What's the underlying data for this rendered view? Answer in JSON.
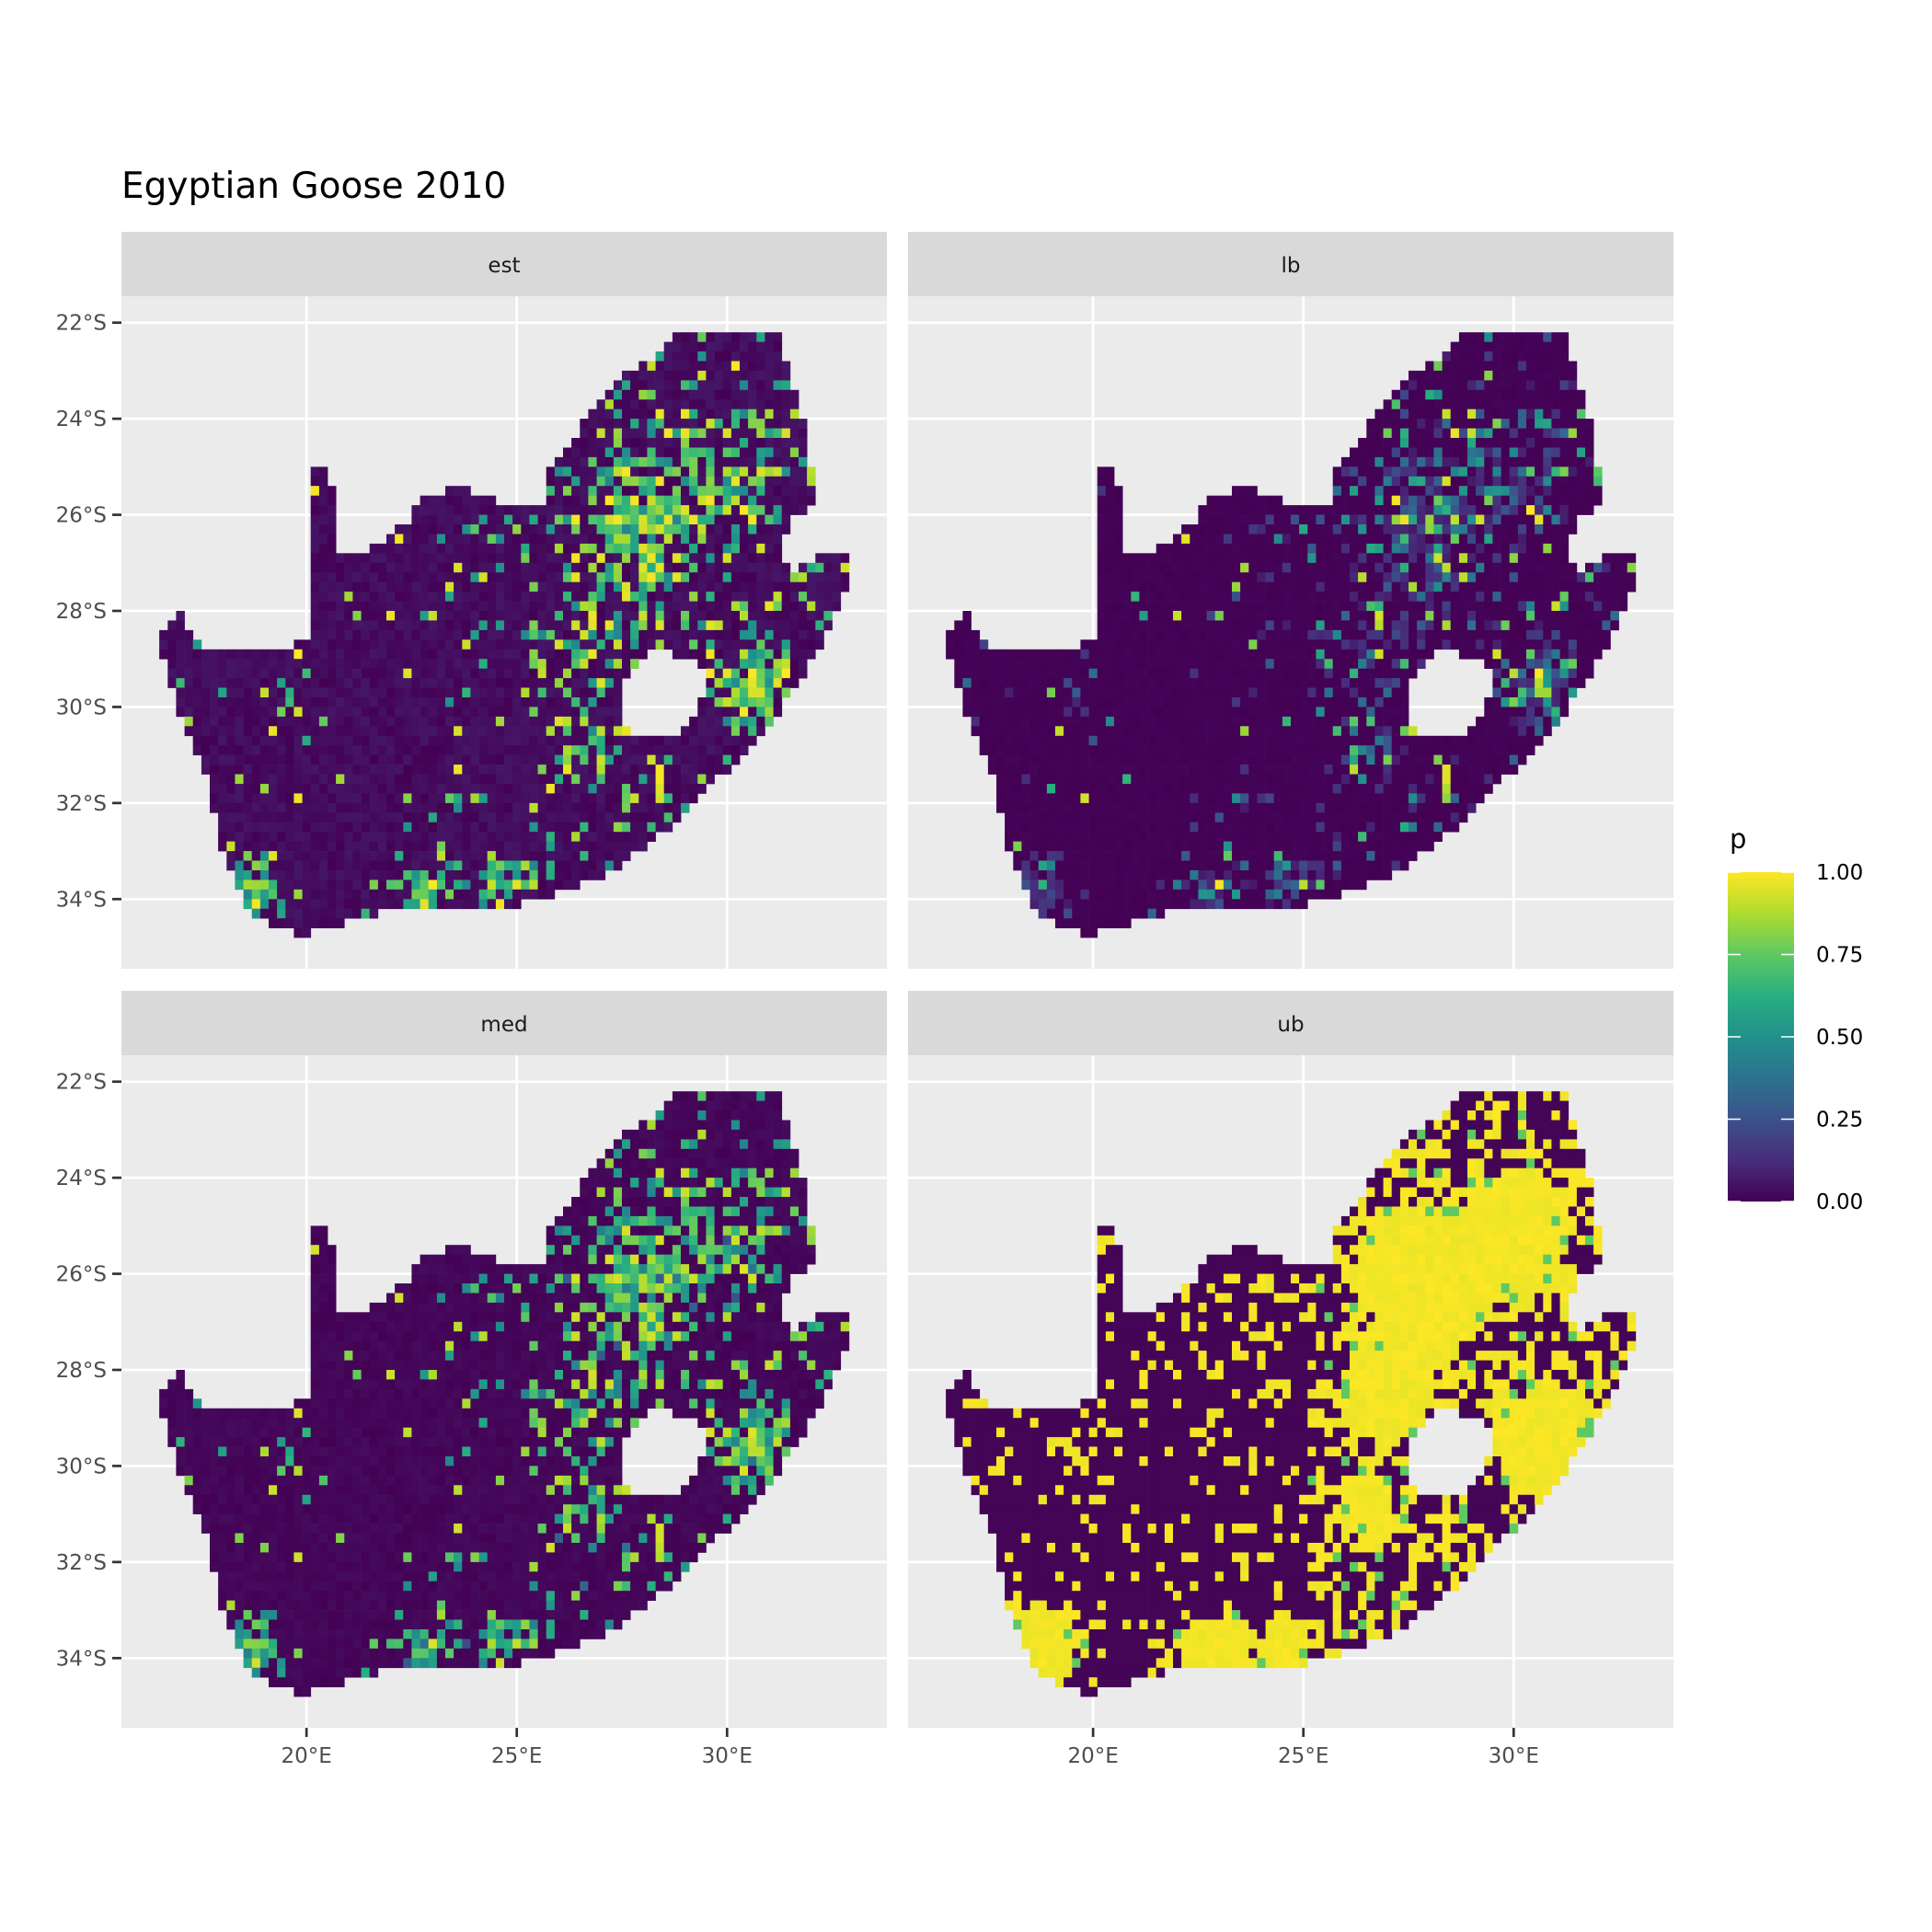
{
  "chart_data": {
    "type": "heatmap",
    "title": "Egyptian Goose 2010",
    "facets": [
      "est",
      "lb",
      "med",
      "ub"
    ],
    "x_ticks": [
      "20°E",
      "25°E",
      "30°E"
    ],
    "x_tick_values": [
      20,
      25,
      30
    ],
    "y_ticks": [
      "22°S",
      "24°S",
      "26°S",
      "28°S",
      "30°S",
      "32°S",
      "34°S"
    ],
    "y_tick_values": [
      -22,
      -24,
      -26,
      -28,
      -30,
      -32,
      -34
    ],
    "xlim": [
      15.6,
      33.8
    ],
    "ylim": [
      -35.45,
      -21.45
    ],
    "grid": true,
    "legend": {
      "title": "p",
      "position": "right",
      "colormap": "viridis",
      "range": [
        0,
        1
      ],
      "labels": [
        "1.00",
        "0.75",
        "0.50",
        "0.25",
        "0.00"
      ],
      "label_values": [
        1,
        0.75,
        0.5,
        0.25,
        0
      ]
    },
    "colors": {
      "panel_background": "#EBEBEB",
      "strip_background": "#D9D9D9",
      "low": "#440154",
      "high": "#FDE725"
    }
  }
}
